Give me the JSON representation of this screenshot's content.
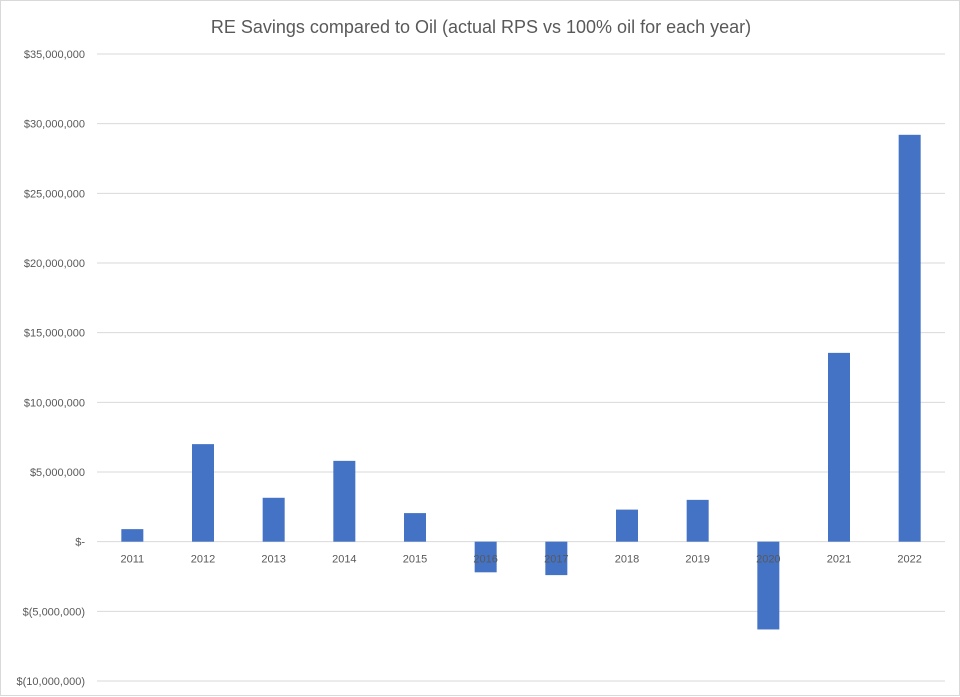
{
  "chart_data": {
    "type": "bar",
    "title": "RE Savings compared to Oil (actual RPS vs 100% oil for each year)",
    "xlabel": "",
    "ylabel": "",
    "categories": [
      "2011",
      "2012",
      "2013",
      "2014",
      "2015",
      "2016",
      "2017",
      "2018",
      "2019",
      "2020",
      "2021",
      "2022"
    ],
    "values": [
      900000,
      7000000,
      3150000,
      5800000,
      2050000,
      -2200000,
      -2400000,
      2300000,
      3000000,
      -6300000,
      13550000,
      29200000
    ],
    "ylim": [
      -10000000,
      35000000
    ],
    "yticks": [
      35000000,
      30000000,
      25000000,
      20000000,
      15000000,
      10000000,
      5000000,
      0,
      -5000000,
      -10000000
    ],
    "ytick_labels": [
      "$35,000,000",
      "$30,000,000",
      "$25,000,000",
      "$20,000,000",
      "$15,000,000",
      "$10,000,000",
      "$5,000,000",
      "$-",
      "$(5,000,000)",
      "$(10,000,000)"
    ],
    "bar_color": "#4472c4",
    "grid": true,
    "legend": "none"
  }
}
